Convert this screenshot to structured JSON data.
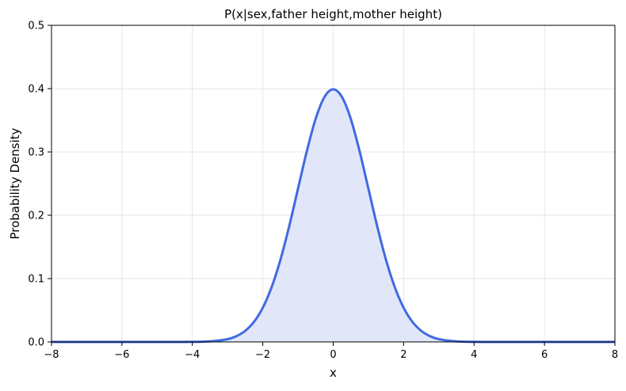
{
  "chart_data": {
    "type": "line",
    "title": "P(x|sex,father height,mother height)",
    "xlabel": "x",
    "ylabel": "Probability Density",
    "xlim": [
      -8,
      8
    ],
    "ylim": [
      0,
      0.5
    ],
    "x_ticks": [
      -8,
      -6,
      -4,
      -2,
      0,
      2,
      4,
      6,
      8
    ],
    "x_tick_labels": [
      "−8",
      "−6",
      "−4",
      "−2",
      "0",
      "2",
      "4",
      "6",
      "8"
    ],
    "y_ticks": [
      0.0,
      0.1,
      0.2,
      0.3,
      0.4,
      0.5
    ],
    "y_tick_labels": [
      "0.0",
      "0.1",
      "0.2",
      "0.3",
      "0.4",
      "0.5"
    ],
    "grid": true,
    "series": [
      {
        "color": "#4169E1",
        "fill_color": "#E1E7F9",
        "filled": true,
        "x": [
          -8,
          -7,
          -6,
          -5,
          -4.5,
          -4,
          -3.5,
          -3,
          -2.75,
          -2.5,
          -2.25,
          -2,
          -1.75,
          -1.5,
          -1.25,
          -1,
          -0.75,
          -0.5,
          -0.25,
          0,
          0.25,
          0.5,
          0.75,
          1,
          1.25,
          1.5,
          1.75,
          2,
          2.25,
          2.5,
          2.75,
          3,
          3.5,
          4,
          4.5,
          5,
          6,
          7,
          8
        ],
        "y": [
          0.0,
          0.0,
          0.0,
          0.0,
          2e-05,
          0.0001,
          0.0009,
          0.0044,
          0.0091,
          0.0175,
          0.0317,
          0.054,
          0.0863,
          0.1295,
          0.1826,
          0.242,
          0.3011,
          0.3521,
          0.3867,
          0.3989,
          0.3867,
          0.3521,
          0.3011,
          0.242,
          0.1826,
          0.1295,
          0.0863,
          0.054,
          0.0317,
          0.0175,
          0.0091,
          0.0044,
          0.0009,
          0.0001,
          2e-05,
          0.0,
          0.0,
          0.0,
          0.0
        ]
      }
    ]
  }
}
